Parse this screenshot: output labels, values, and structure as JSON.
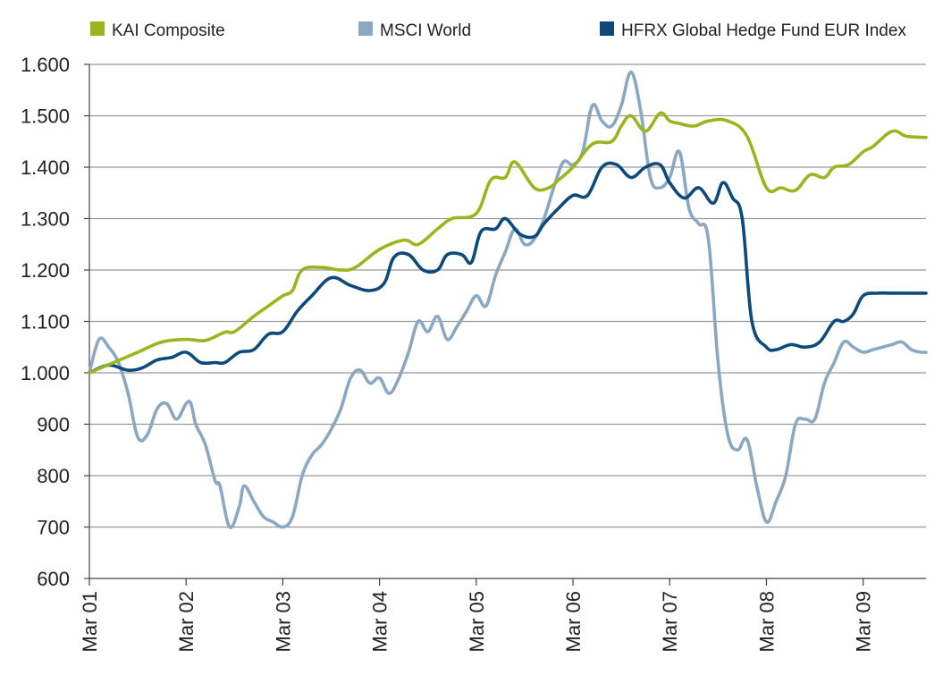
{
  "chart_data": {
    "type": "line",
    "title": "",
    "xlabel": "",
    "ylabel": "",
    "ylim": [
      600,
      1600
    ],
    "yticks": [
      600,
      700,
      800,
      900,
      1000,
      1100,
      1200,
      1300,
      1400,
      1500,
      1600
    ],
    "ytick_labels": [
      "600",
      "700",
      "800",
      "900",
      "1.000",
      "1.100",
      "1.200",
      "1.300",
      "1.400",
      "1.500",
      "1.600"
    ],
    "xlim": [
      0,
      8.65
    ],
    "xticks": [
      0,
      1,
      2,
      3,
      4,
      5,
      6,
      7,
      8
    ],
    "xtick_labels": [
      "Mar 01",
      "Mar 02",
      "Mar 03",
      "Mar 04",
      "Mar 05",
      "Mar 06",
      "Mar 07",
      "Mar 08",
      "Mar 09"
    ],
    "grid": "horizontal",
    "legend_position": "top",
    "colors": {
      "kai": "#9ab51e",
      "msci": "#8aa8c2",
      "hfrx": "#0d4a7c",
      "grid": "#999999",
      "axis": "#444444"
    },
    "series": [
      {
        "name": "KAI Composite",
        "color": "#9ab51e",
        "x": [
          0,
          0.25,
          0.5,
          0.75,
          1.0,
          1.2,
          1.4,
          1.5,
          1.7,
          1.85,
          2.0,
          2.1,
          2.2,
          2.4,
          2.6,
          2.75,
          3.0,
          3.25,
          3.4,
          3.6,
          3.75,
          4.0,
          4.15,
          4.3,
          4.4,
          4.6,
          4.75,
          4.85,
          5.0,
          5.2,
          5.4,
          5.5,
          5.6,
          5.75,
          5.9,
          6.0,
          6.1,
          6.25,
          6.4,
          6.6,
          6.8,
          7.0,
          7.15,
          7.3,
          7.45,
          7.6,
          7.7,
          7.85,
          8.0,
          8.1,
          8.3,
          8.45,
          8.65
        ],
        "values": [
          1000,
          1020,
          1040,
          1060,
          1065,
          1063,
          1079,
          1080,
          1110,
          1130,
          1150,
          1160,
          1200,
          1205,
          1200,
          1205,
          1240,
          1258,
          1250,
          1280,
          1300,
          1310,
          1375,
          1380,
          1410,
          1360,
          1360,
          1375,
          1400,
          1445,
          1450,
          1480,
          1500,
          1470,
          1505,
          1490,
          1485,
          1480,
          1490,
          1490,
          1460,
          1360,
          1360,
          1355,
          1385,
          1380,
          1400,
          1405,
          1430,
          1440,
          1470,
          1460,
          1458
        ]
      },
      {
        "name": "MSCI World",
        "color": "#8aa8c2",
        "x": [
          0,
          0.1,
          0.2,
          0.3,
          0.4,
          0.5,
          0.6,
          0.7,
          0.8,
          0.9,
          1.0,
          1.05,
          1.1,
          1.2,
          1.3,
          1.35,
          1.45,
          1.55,
          1.6,
          1.7,
          1.8,
          1.9,
          2.0,
          2.1,
          2.2,
          2.3,
          2.4,
          2.5,
          2.6,
          2.7,
          2.8,
          2.9,
          3.0,
          3.1,
          3.2,
          3.3,
          3.4,
          3.5,
          3.6,
          3.7,
          3.8,
          3.9,
          4.0,
          4.1,
          4.2,
          4.3,
          4.4,
          4.5,
          4.6,
          4.7,
          4.8,
          4.9,
          5.0,
          5.1,
          5.2,
          5.3,
          5.4,
          5.5,
          5.6,
          5.7,
          5.8,
          5.9,
          6.0,
          6.1,
          6.2,
          6.3,
          6.4,
          6.5,
          6.6,
          6.7,
          6.8,
          6.9,
          7.0,
          7.1,
          7.2,
          7.3,
          7.4,
          7.5,
          7.6,
          7.7,
          7.8,
          7.9,
          8.0,
          8.1,
          8.2,
          8.3,
          8.4,
          8.5,
          8.6,
          8.65
        ],
        "values": [
          1000,
          1065,
          1050,
          1020,
          960,
          875,
          880,
          930,
          940,
          910,
          940,
          940,
          900,
          860,
          790,
          780,
          700,
          740,
          780,
          750,
          720,
          710,
          700,
          720,
          800,
          840,
          860,
          890,
          930,
          990,
          1005,
          980,
          990,
          960,
          990,
          1040,
          1100,
          1080,
          1110,
          1065,
          1090,
          1120,
          1150,
          1130,
          1190,
          1235,
          1280,
          1250,
          1260,
          1300,
          1360,
          1410,
          1405,
          1430,
          1520,
          1490,
          1480,
          1520,
          1585,
          1510,
          1380,
          1360,
          1380,
          1430,
          1320,
          1290,
          1260,
          1020,
          880,
          850,
          870,
          780,
          710,
          750,
          800,
          900,
          910,
          910,
          980,
          1020,
          1060,
          1050,
          1040,
          1045,
          1050,
          1055,
          1060,
          1045,
          1040,
          1040
        ]
      },
      {
        "name": "HFRX Global Hedge Fund EUR Index",
        "color": "#0d4a7c",
        "x": [
          0,
          0.2,
          0.4,
          0.55,
          0.7,
          0.85,
          1.0,
          1.15,
          1.3,
          1.4,
          1.55,
          1.7,
          1.85,
          2.0,
          2.15,
          2.3,
          2.5,
          2.7,
          2.9,
          3.05,
          3.15,
          3.3,
          3.45,
          3.6,
          3.7,
          3.85,
          3.95,
          4.05,
          4.2,
          4.3,
          4.45,
          4.6,
          4.7,
          4.85,
          5.0,
          5.15,
          5.3,
          5.45,
          5.6,
          5.75,
          5.9,
          6.0,
          6.15,
          6.3,
          6.45,
          6.55,
          6.65,
          6.75,
          6.85,
          7.0,
          7.1,
          7.25,
          7.4,
          7.55,
          7.7,
          7.8,
          7.9,
          8.0,
          8.15,
          8.3,
          8.5,
          8.65
        ],
        "values": [
          1000,
          1015,
          1005,
          1010,
          1025,
          1030,
          1040,
          1020,
          1020,
          1020,
          1040,
          1045,
          1075,
          1080,
          1120,
          1150,
          1185,
          1170,
          1160,
          1175,
          1225,
          1230,
          1200,
          1200,
          1230,
          1230,
          1215,
          1275,
          1280,
          1300,
          1270,
          1265,
          1290,
          1320,
          1345,
          1345,
          1400,
          1405,
          1380,
          1400,
          1405,
          1370,
          1340,
          1360,
          1330,
          1370,
          1340,
          1300,
          1100,
          1050,
          1045,
          1055,
          1050,
          1060,
          1100,
          1100,
          1115,
          1150,
          1155,
          1155,
          1155,
          1155
        ]
      }
    ]
  }
}
